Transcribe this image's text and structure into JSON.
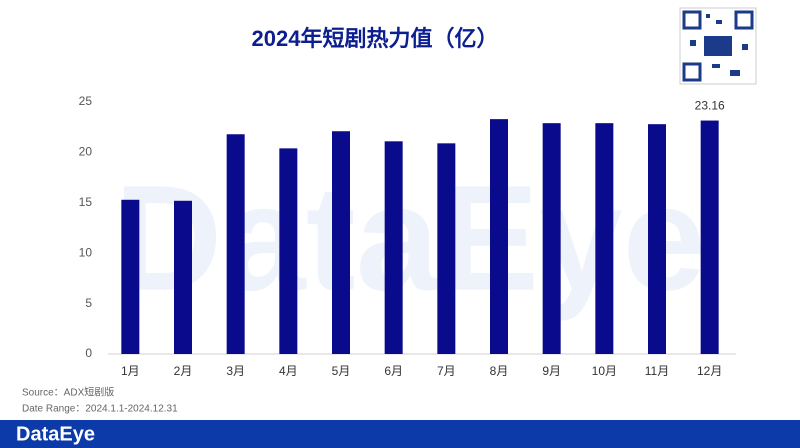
{
  "chart_data": {
    "type": "bar",
    "title": "2024年短剧热力值（亿）",
    "categories": [
      "1月",
      "2月",
      "3月",
      "4月",
      "5月",
      "6月",
      "7月",
      "8月",
      "9月",
      "10月",
      "11月",
      "12月"
    ],
    "values": [
      15.3,
      15.2,
      21.8,
      20.4,
      22.1,
      21.1,
      20.9,
      23.3,
      22.9,
      22.9,
      22.8,
      23.16
    ],
    "value_labels": [
      null,
      null,
      null,
      null,
      null,
      null,
      null,
      null,
      null,
      null,
      null,
      "23.16"
    ],
    "color": "#0a0a8c",
    "ylim": [
      0,
      25
    ],
    "yticks": [
      0,
      5,
      10,
      15,
      20,
      25
    ],
    "grid": false,
    "notes": [
      "Source：ADX短剧版",
      "Date Range：2024.1.1-2024.12.31"
    ],
    "brand": "DataEye"
  }
}
